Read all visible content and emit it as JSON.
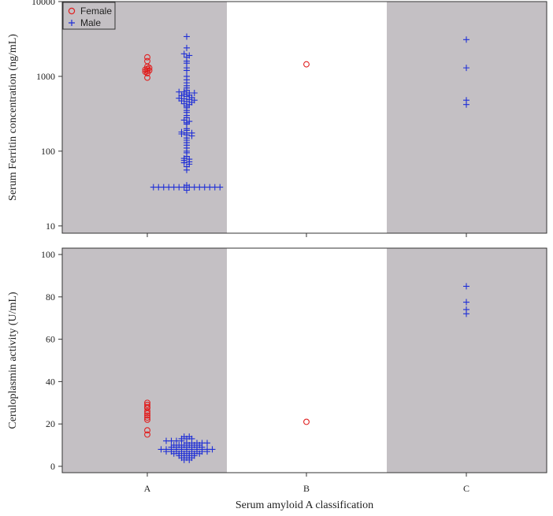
{
  "colors": {
    "female": "#e02020",
    "male": "#1f2fd6",
    "shade": "#c4c0c4",
    "frame": "#333333"
  },
  "chart_data": [
    {
      "type": "scatter",
      "panel": "top",
      "ylabel": "Serum Ferritin concentration (ng/mL)",
      "y_scale": "log",
      "ylim": [
        8,
        10000
      ],
      "yticks": [
        "10",
        "100",
        "1000",
        "10000"
      ],
      "categories": [
        "A",
        "B",
        "C"
      ],
      "shaded_categories": [
        "A",
        "C"
      ],
      "legend": {
        "placement": "top-left",
        "entries": [
          "Female",
          "Male"
        ]
      },
      "series": [
        {
          "name": "Female",
          "marker": "circle",
          "points": [
            {
              "x": "A",
              "y": 960
            },
            {
              "x": "A",
              "y": 1100
            },
            {
              "x": "A",
              "y": 1150
            },
            {
              "x": "A",
              "y": 1180
            },
            {
              "x": "A",
              "y": 1200
            },
            {
              "x": "A",
              "y": 1230
            },
            {
              "x": "A",
              "y": 1260
            },
            {
              "x": "A",
              "y": 1300
            },
            {
              "x": "A",
              "y": 1350
            },
            {
              "x": "A",
              "y": 1600
            },
            {
              "x": "A",
              "y": 1800
            },
            {
              "x": "B",
              "y": 1450
            }
          ]
        },
        {
          "name": "Male",
          "marker": "plus",
          "points": [
            {
              "x": "A",
              "y": 3400
            },
            {
              "x": "A",
              "y": 2400
            },
            {
              "x": "A",
              "y": 2000
            },
            {
              "x": "A",
              "y": 1900
            },
            {
              "x": "A",
              "y": 1800
            },
            {
              "x": "A",
              "y": 1600
            },
            {
              "x": "A",
              "y": 1500
            },
            {
              "x": "A",
              "y": 1300
            },
            {
              "x": "A",
              "y": 1200
            },
            {
              "x": "A",
              "y": 1000
            },
            {
              "x": "A",
              "y": 900
            },
            {
              "x": "A",
              "y": 820
            },
            {
              "x": "A",
              "y": 750
            },
            {
              "x": "A",
              "y": 700
            },
            {
              "x": "A",
              "y": 650
            },
            {
              "x": "A",
              "y": 620
            },
            {
              "x": "A",
              "y": 620
            },
            {
              "x": "A",
              "y": 600
            },
            {
              "x": "A",
              "y": 600
            },
            {
              "x": "A",
              "y": 580
            },
            {
              "x": "A",
              "y": 560
            },
            {
              "x": "A",
              "y": 550
            },
            {
              "x": "A",
              "y": 540
            },
            {
              "x": "A",
              "y": 520
            },
            {
              "x": "A",
              "y": 510
            },
            {
              "x": "A",
              "y": 500
            },
            {
              "x": "A",
              "y": 490
            },
            {
              "x": "A",
              "y": 480
            },
            {
              "x": "A",
              "y": 470
            },
            {
              "x": "A",
              "y": 460
            },
            {
              "x": "A",
              "y": 450
            },
            {
              "x": "A",
              "y": 430
            },
            {
              "x": "A",
              "y": 420
            },
            {
              "x": "A",
              "y": 400
            },
            {
              "x": "A",
              "y": 380
            },
            {
              "x": "A",
              "y": 350
            },
            {
              "x": "A",
              "y": 330
            },
            {
              "x": "A",
              "y": 300
            },
            {
              "x": "A",
              "y": 280
            },
            {
              "x": "A",
              "y": 260
            },
            {
              "x": "A",
              "y": 250
            },
            {
              "x": "A",
              "y": 240
            },
            {
              "x": "A",
              "y": 230
            },
            {
              "x": "A",
              "y": 200
            },
            {
              "x": "A",
              "y": 190
            },
            {
              "x": "A",
              "y": 180
            },
            {
              "x": "A",
              "y": 175
            },
            {
              "x": "A",
              "y": 175
            },
            {
              "x": "A",
              "y": 170
            },
            {
              "x": "A",
              "y": 165
            },
            {
              "x": "A",
              "y": 160
            },
            {
              "x": "A",
              "y": 150
            },
            {
              "x": "A",
              "y": 140
            },
            {
              "x": "A",
              "y": 130
            },
            {
              "x": "A",
              "y": 120
            },
            {
              "x": "A",
              "y": 110
            },
            {
              "x": "A",
              "y": 100
            },
            {
              "x": "A",
              "y": 95
            },
            {
              "x": "A",
              "y": 85
            },
            {
              "x": "A",
              "y": 80
            },
            {
              "x": "A",
              "y": 78
            },
            {
              "x": "A",
              "y": 75
            },
            {
              "x": "A",
              "y": 72
            },
            {
              "x": "A",
              "y": 70
            },
            {
              "x": "A",
              "y": 67
            },
            {
              "x": "A",
              "y": 62
            },
            {
              "x": "A",
              "y": 56
            },
            {
              "x": "A",
              "y": 33
            },
            {
              "x": "A",
              "y": 33
            },
            {
              "x": "A",
              "y": 33
            },
            {
              "x": "A",
              "y": 33
            },
            {
              "x": "A",
              "y": 33
            },
            {
              "x": "A",
              "y": 33
            },
            {
              "x": "A",
              "y": 33
            },
            {
              "x": "A",
              "y": 33
            },
            {
              "x": "A",
              "y": 33
            },
            {
              "x": "A",
              "y": 33
            },
            {
              "x": "A",
              "y": 33
            },
            {
              "x": "A",
              "y": 33
            },
            {
              "x": "A",
              "y": 35
            },
            {
              "x": "A",
              "y": 33
            },
            {
              "x": "A",
              "y": 33
            },
            {
              "x": "A",
              "y": 30
            },
            {
              "x": "C",
              "y": 3100
            },
            {
              "x": "C",
              "y": 1300
            },
            {
              "x": "C",
              "y": 480
            },
            {
              "x": "C",
              "y": 420
            }
          ]
        }
      ]
    },
    {
      "type": "scatter",
      "panel": "bottom",
      "xlabel": "Serum amyloid A classification",
      "ylabel": "Ceruloplasmin activity (U/mL)",
      "ylim": [
        -3,
        103
      ],
      "yticks": [
        "0",
        "20",
        "40",
        "60",
        "80",
        "100"
      ],
      "categories": [
        "A",
        "B",
        "C"
      ],
      "shaded_categories": [
        "A",
        "C"
      ],
      "series": [
        {
          "name": "Female",
          "marker": "circle",
          "points": [
            {
              "x": "A",
              "y": 30
            },
            {
              "x": "A",
              "y": 29
            },
            {
              "x": "A",
              "y": 28
            },
            {
              "x": "A",
              "y": 27.5
            },
            {
              "x": "A",
              "y": 26
            },
            {
              "x": "A",
              "y": 25
            },
            {
              "x": "A",
              "y": 24
            },
            {
              "x": "A",
              "y": 23
            },
            {
              "x": "A",
              "y": 22
            },
            {
              "x": "A",
              "y": 17
            },
            {
              "x": "A",
              "y": 15
            },
            {
              "x": "B",
              "y": 21
            }
          ]
        },
        {
          "name": "Male",
          "marker": "plus",
          "points": [
            {
              "x": "A",
              "y": 14
            },
            {
              "x": "A",
              "y": 14
            },
            {
              "x": "A",
              "y": 13
            },
            {
              "x": "A",
              "y": 13
            },
            {
              "x": "A",
              "y": 13
            },
            {
              "x": "A",
              "y": 12
            },
            {
              "x": "A",
              "y": 12
            },
            {
              "x": "A",
              "y": 12
            },
            {
              "x": "A",
              "y": 12
            },
            {
              "x": "A",
              "y": 11
            },
            {
              "x": "A",
              "y": 11
            },
            {
              "x": "A",
              "y": 11
            },
            {
              "x": "A",
              "y": 11
            },
            {
              "x": "A",
              "y": 11
            },
            {
              "x": "A",
              "y": 10
            },
            {
              "x": "A",
              "y": 10
            },
            {
              "x": "A",
              "y": 10
            },
            {
              "x": "A",
              "y": 10
            },
            {
              "x": "A",
              "y": 10
            },
            {
              "x": "A",
              "y": 10
            },
            {
              "x": "A",
              "y": 9
            },
            {
              "x": "A",
              "y": 9
            },
            {
              "x": "A",
              "y": 9
            },
            {
              "x": "A",
              "y": 9
            },
            {
              "x": "A",
              "y": 9
            },
            {
              "x": "A",
              "y": 9
            },
            {
              "x": "A",
              "y": 9
            },
            {
              "x": "A",
              "y": 8
            },
            {
              "x": "A",
              "y": 8
            },
            {
              "x": "A",
              "y": 8
            },
            {
              "x": "A",
              "y": 8
            },
            {
              "x": "A",
              "y": 8
            },
            {
              "x": "A",
              "y": 8
            },
            {
              "x": "A",
              "y": 8
            },
            {
              "x": "A",
              "y": 8
            },
            {
              "x": "A",
              "y": 8
            },
            {
              "x": "A",
              "y": 8
            },
            {
              "x": "A",
              "y": 8
            },
            {
              "x": "A",
              "y": 7
            },
            {
              "x": "A",
              "y": 7
            },
            {
              "x": "A",
              "y": 7
            },
            {
              "x": "A",
              "y": 7
            },
            {
              "x": "A",
              "y": 7
            },
            {
              "x": "A",
              "y": 7
            },
            {
              "x": "A",
              "y": 7
            },
            {
              "x": "A",
              "y": 7
            },
            {
              "x": "A",
              "y": 7
            },
            {
              "x": "A",
              "y": 6
            },
            {
              "x": "A",
              "y": 6
            },
            {
              "x": "A",
              "y": 6
            },
            {
              "x": "A",
              "y": 6
            },
            {
              "x": "A",
              "y": 6
            },
            {
              "x": "A",
              "y": 6
            },
            {
              "x": "A",
              "y": 5
            },
            {
              "x": "A",
              "y": 5
            },
            {
              "x": "A",
              "y": 5
            },
            {
              "x": "A",
              "y": 5
            },
            {
              "x": "A",
              "y": 4
            },
            {
              "x": "A",
              "y": 4
            },
            {
              "x": "A",
              "y": 4
            },
            {
              "x": "A",
              "y": 3
            },
            {
              "x": "A",
              "y": 3
            },
            {
              "x": "C",
              "y": 85
            },
            {
              "x": "C",
              "y": 77.5
            },
            {
              "x": "C",
              "y": 74
            },
            {
              "x": "C",
              "y": 72
            }
          ]
        }
      ]
    }
  ]
}
